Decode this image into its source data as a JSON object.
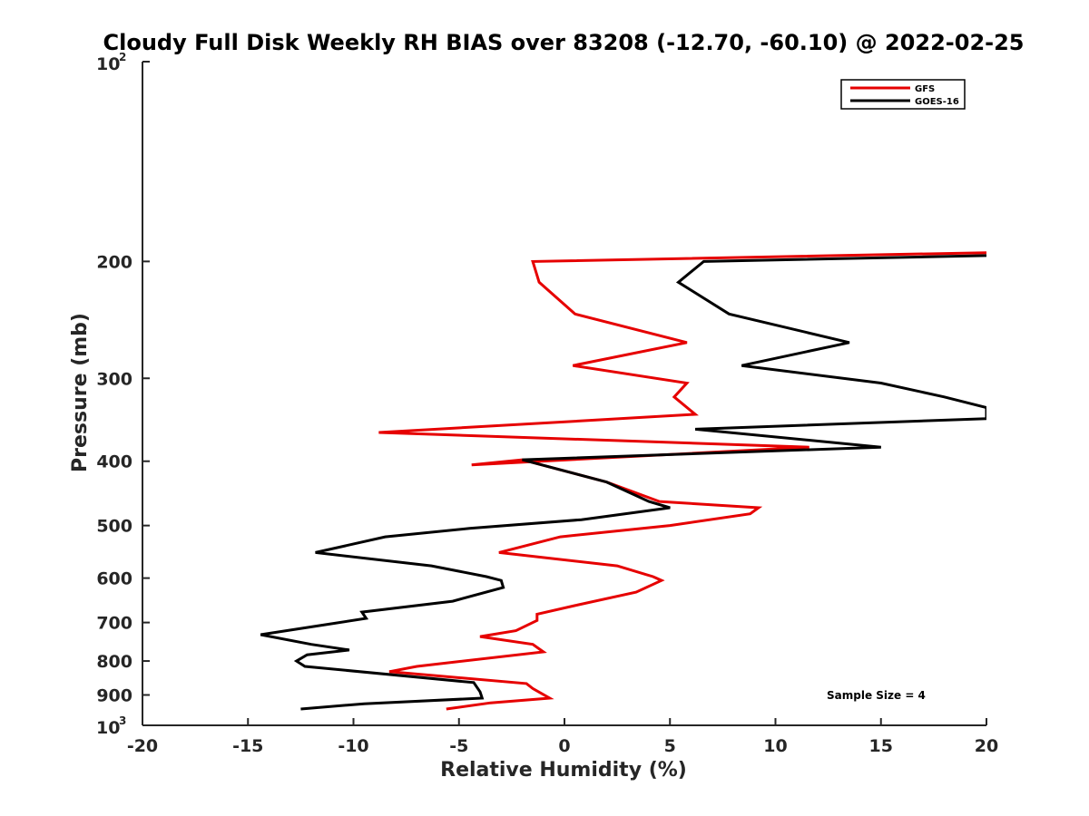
{
  "chart_data": {
    "type": "line",
    "title": "Cloudy Full Disk Weekly RH BIAS over 83208 (-12.70, -60.10) @ 2022-02-25",
    "xlabel": "Relative Humidity (%)",
    "ylabel": "Pressure (mb)",
    "xlim": [
      -20,
      20
    ],
    "ylim": [
      100,
      1000
    ],
    "yscale": "log",
    "y_reversed": true,
    "legend_position": "top-right",
    "x_ticks": [
      "-20",
      "-15",
      "-10",
      "-5",
      "0",
      "5",
      "10",
      "15",
      "20"
    ],
    "y_ticks": [
      {
        "value": 100,
        "base": "10",
        "exp": "2"
      },
      {
        "value": 200,
        "label": "200"
      },
      {
        "value": 300,
        "label": "300"
      },
      {
        "value": 400,
        "label": "400"
      },
      {
        "value": 500,
        "label": "500"
      },
      {
        "value": 600,
        "label": "600"
      },
      {
        "value": 700,
        "label": "700"
      },
      {
        "value": 800,
        "label": "800"
      },
      {
        "value": 900,
        "label": "900"
      },
      {
        "value": 1000,
        "base": "10",
        "exp": "3"
      }
    ],
    "series": [
      {
        "name": "GFS",
        "color": "#e60000",
        "points": [
          [
            20,
            194
          ],
          [
            -1.5,
            200
          ],
          [
            -1.2,
            215
          ],
          [
            0.5,
            240
          ],
          [
            5.8,
            265
          ],
          [
            0.4,
            287
          ],
          [
            5.8,
            305
          ],
          [
            5.2,
            320
          ],
          [
            6.2,
            340
          ],
          [
            -8.8,
            362
          ],
          [
            11.6,
            381
          ],
          [
            -4.4,
            405
          ],
          [
            -2,
            398
          ],
          [
            2,
            430
          ],
          [
            4.5,
            460
          ],
          [
            9.2,
            470
          ],
          [
            8.8,
            480
          ],
          [
            5,
            500
          ],
          [
            -0.2,
            520
          ],
          [
            -3.1,
            549
          ],
          [
            2.5,
            575
          ],
          [
            4.2,
            597
          ],
          [
            4.6,
            605
          ],
          [
            3.4,
            630
          ],
          [
            0.5,
            660
          ],
          [
            -1.3,
            680
          ],
          [
            -1.3,
            695
          ],
          [
            -2.3,
            720
          ],
          [
            -4,
            735
          ],
          [
            -1.5,
            755
          ],
          [
            -1,
            775
          ],
          [
            -7,
            815
          ],
          [
            -8.3,
            830
          ],
          [
            -1.8,
            865
          ],
          [
            -1.5,
            880
          ],
          [
            -0.7,
            910
          ],
          [
            -3.5,
            925
          ],
          [
            -5.6,
            945
          ]
        ]
      },
      {
        "name": "GOES-16",
        "color": "#000000",
        "points": [
          [
            20,
            196
          ],
          [
            6.6,
            200
          ],
          [
            5.4,
            215
          ],
          [
            7.8,
            240
          ],
          [
            13.5,
            265
          ],
          [
            8.4,
            287
          ],
          [
            15,
            305
          ],
          [
            18,
            320
          ],
          [
            20,
            332
          ],
          [
            20,
            345
          ],
          [
            6.2,
            358
          ],
          [
            15,
            381
          ],
          [
            -2,
            398
          ],
          [
            2,
            430
          ],
          [
            4,
            460
          ],
          [
            5,
            470
          ],
          [
            0.8,
            490
          ],
          [
            -4.5,
            505
          ],
          [
            -8.5,
            520
          ],
          [
            -11.8,
            549
          ],
          [
            -6.3,
            575
          ],
          [
            -3.7,
            597
          ],
          [
            -3,
            605
          ],
          [
            -2.9,
            620
          ],
          [
            -5.3,
            650
          ],
          [
            -9.6,
            675
          ],
          [
            -9.4,
            690
          ],
          [
            -11.3,
            705
          ],
          [
            -14.4,
            730
          ],
          [
            -12,
            755
          ],
          [
            -10.2,
            770
          ],
          [
            -12.2,
            783
          ],
          [
            -12.7,
            800
          ],
          [
            -12.3,
            815
          ],
          [
            -4.3,
            862
          ],
          [
            -4,
            890
          ],
          [
            -3.9,
            910
          ],
          [
            -9.5,
            928
          ],
          [
            -12.5,
            945
          ]
        ]
      }
    ],
    "annotation": "Sample Size = 4"
  }
}
